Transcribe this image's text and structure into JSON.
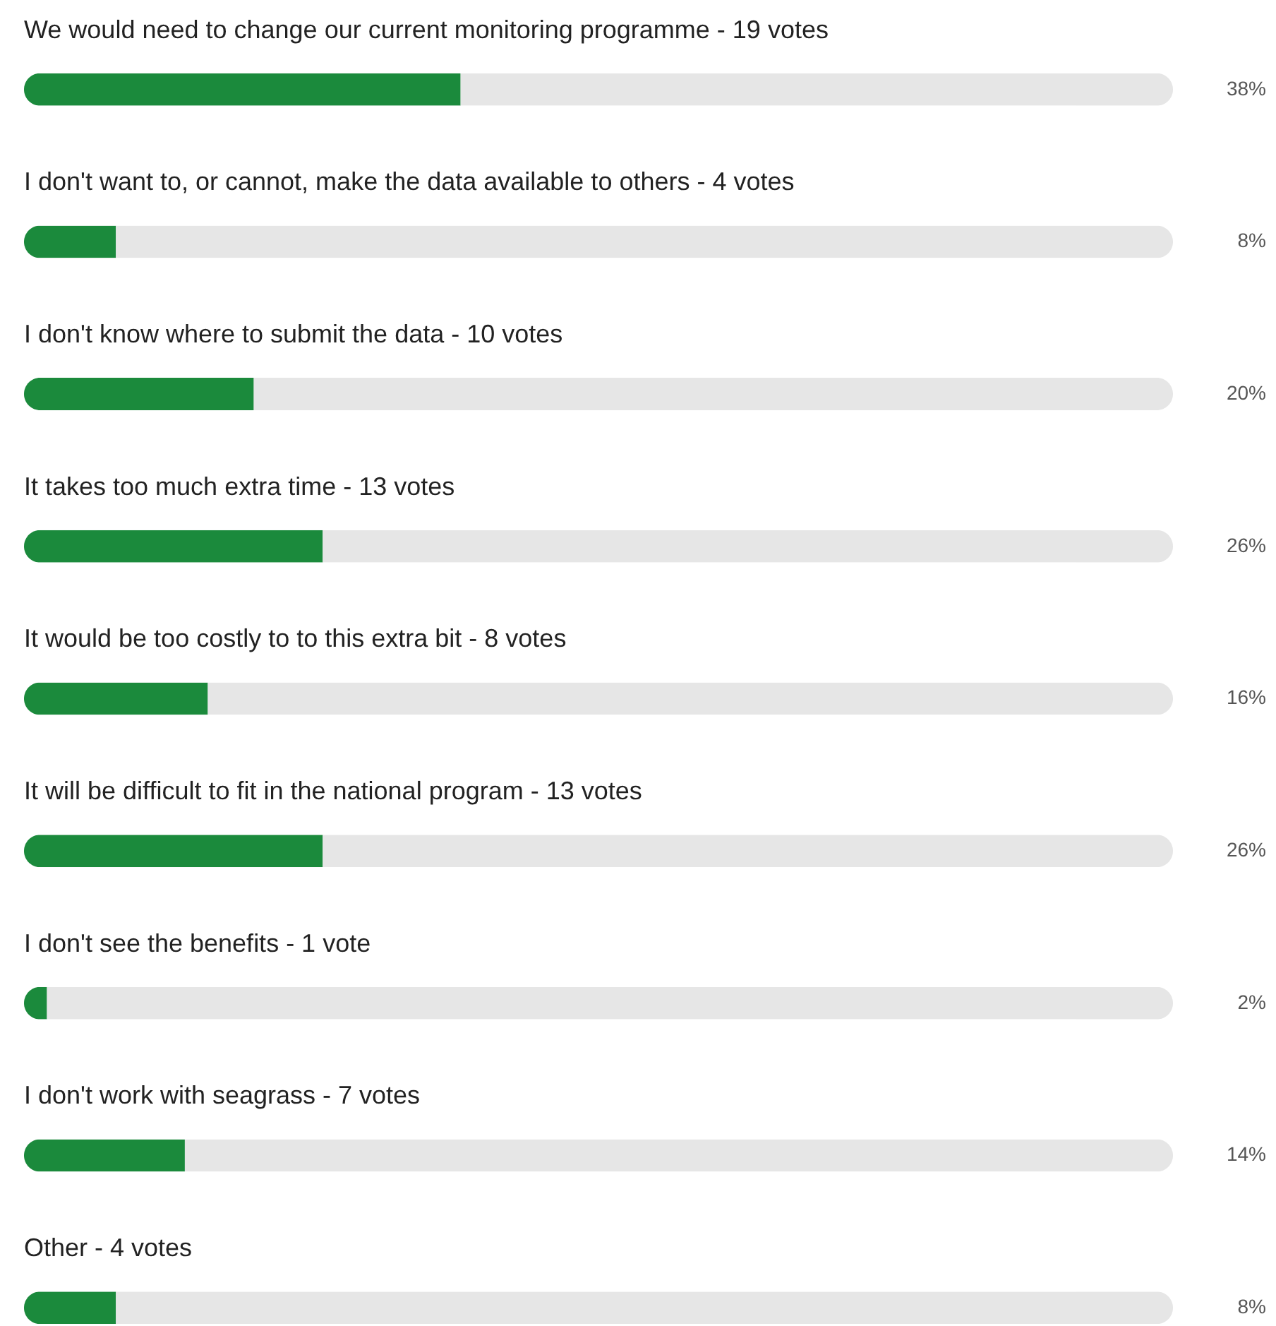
{
  "chart_data": {
    "type": "bar",
    "orientation": "horizontal",
    "stacked": true,
    "categories": [
      "We would need to change our current monitoring programme - 19 votes",
      "I don't want to, or cannot, make the data available to others - 4 votes",
      "I don't know where to submit the data - 10 votes",
      "It takes too much extra time - 13 votes",
      "It would be too costly to to this extra bit - 8 votes",
      "It will be difficult to fit in the national program - 13 votes",
      "I don't see the benefits - 1 vote",
      "I don't work with seagrass - 7 votes",
      "Other - 4 votes"
    ],
    "series": [
      {
        "color": "#1b8a3c",
        "values": [
          38,
          8,
          20,
          26,
          16,
          26,
          2,
          14,
          8
        ],
        "value_labels": [
          "38%",
          "8%",
          "20%",
          "26%",
          "16%",
          "26%",
          "2%",
          "14%",
          "8%"
        ]
      },
      {
        "color": "#e6e6e6",
        "values": [
          62,
          92,
          80,
          74,
          84,
          74,
          98,
          86,
          92
        ]
      }
    ],
    "data_labels": false
  }
}
